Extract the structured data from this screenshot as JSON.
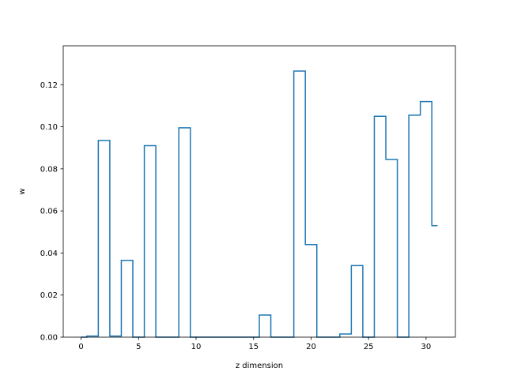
{
  "chart_data": {
    "type": "line",
    "style": "step",
    "title": "",
    "xlabel": "z dimension",
    "ylabel": "w",
    "x": [
      0,
      1,
      2,
      3,
      4,
      5,
      6,
      7,
      8,
      9,
      10,
      11,
      12,
      13,
      14,
      15,
      16,
      17,
      18,
      19,
      20,
      21,
      22,
      23,
      24,
      25,
      26,
      27,
      28,
      29,
      30,
      31
    ],
    "series": [
      {
        "values": [
          0.0,
          0.0005,
          0.0935,
          0.0005,
          0.0365,
          0.0,
          0.091,
          0.0,
          0.0,
          0.0995,
          0.0,
          0.0,
          0.0,
          0.0,
          0.0,
          0.0,
          0.0105,
          0.0,
          0.0,
          0.1265,
          0.044,
          0.0,
          0.0,
          0.0015,
          0.034,
          0.0,
          0.105,
          0.0845,
          0.0,
          0.1055,
          0.112,
          0.053
        ],
        "color": "#1f77b4"
      }
    ],
    "xlim": [
      -1.55,
      32.55
    ],
    "ylim": [
      0.0,
      0.1385
    ],
    "xticks": [
      0,
      5,
      10,
      15,
      20,
      25,
      30
    ],
    "yticks": [
      0.0,
      0.02,
      0.04,
      0.06,
      0.08,
      0.1,
      0.12
    ],
    "xtick_labels": [
      "0",
      "5",
      "10",
      "15",
      "20",
      "25",
      "30"
    ],
    "ytick_labels": [
      "0.00",
      "0.02",
      "0.04",
      "0.06",
      "0.08",
      "0.10",
      "0.12"
    ],
    "grid": false
  }
}
